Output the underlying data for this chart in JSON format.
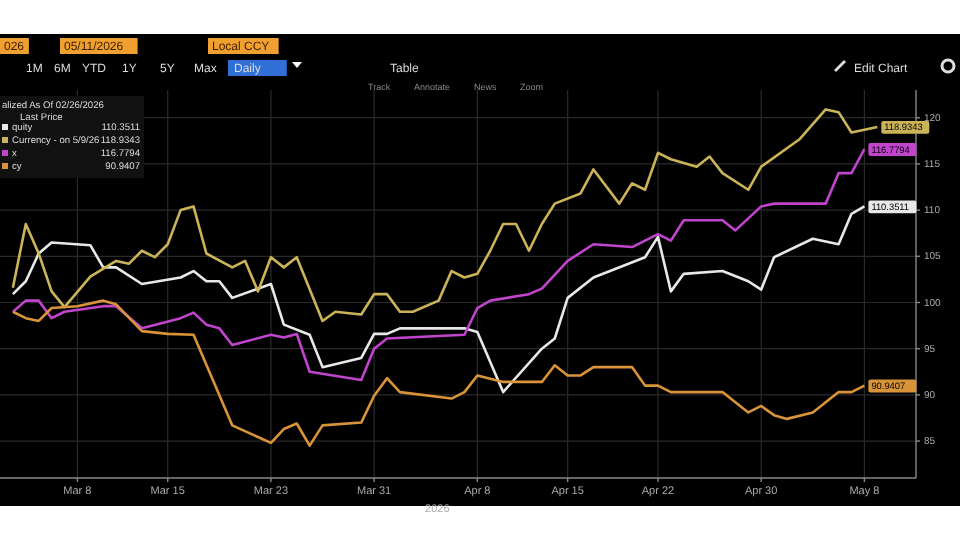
{
  "chart_data": {
    "type": "line",
    "legend_title": "alized As Of 02/26/2026\nLast Price",
    "xlabel": "2026",
    "xlim": [
      "2026-03-02",
      "2026-05-12"
    ],
    "xticks": [
      {
        "value": "2026-03-08",
        "label": "Mar 8"
      },
      {
        "value": "2026-03-15",
        "label": "Mar 15"
      },
      {
        "value": "2026-03-23",
        "label": "Mar 23"
      },
      {
        "value": "2026-03-31",
        "label": "Mar 31"
      },
      {
        "value": "2026-04-08",
        "label": "Apr 8"
      },
      {
        "value": "2026-04-15",
        "label": "Apr 15"
      },
      {
        "value": "2026-04-22",
        "label": "Apr 22"
      },
      {
        "value": "2026-04-30",
        "label": "Apr 30"
      },
      {
        "value": "2026-05-08",
        "label": "May 8"
      }
    ],
    "ylim": [
      81,
      123
    ],
    "yticks": [
      85,
      90,
      95,
      100,
      105,
      110,
      115,
      120
    ],
    "grid": true,
    "legend": "top left",
    "marker": "none",
    "line_style": "solid",
    "series": [
      {
        "name": "quity",
        "color": "#e8e8e8",
        "x": [
          "2026-03-03",
          "2026-03-04",
          "2026-03-05",
          "2026-03-06",
          "2026-03-09",
          "2026-03-10",
          "2026-03-11",
          "2026-03-13",
          "2026-03-16",
          "2026-03-17",
          "2026-03-18",
          "2026-03-19",
          "2026-03-20",
          "2026-03-23",
          "2026-03-24",
          "2026-03-26",
          "2026-03-27",
          "2026-03-30",
          "2026-03-31",
          "2026-04-01",
          "2026-04-02",
          "2026-04-07",
          "2026-04-08",
          "2026-04-10",
          "2026-04-13",
          "2026-04-14",
          "2026-04-15",
          "2026-04-17",
          "2026-04-21",
          "2026-04-22",
          "2026-04-23",
          "2026-04-24",
          "2026-04-27",
          "2026-04-29",
          "2026-04-30",
          "2026-05-01",
          "2026-05-04",
          "2026-05-06",
          "2026-05-07",
          "2026-05-08"
        ],
        "values": [
          100.9,
          102.3,
          105.3,
          106.5,
          106.2,
          103.8,
          103.8,
          102,
          102.7,
          103.4,
          102.3,
          102.3,
          100.5,
          102,
          97.6,
          96.5,
          93,
          94,
          96.6,
          96.6,
          97.2,
          97.2,
          96.8,
          90.3,
          95,
          96.1,
          100.5,
          102.7,
          104.9,
          107.1,
          101.2,
          103.1,
          103.4,
          102.3,
          101.4,
          104.9,
          106.9,
          106.3,
          109.6,
          110.4
        ]
      },
      {
        "name": "Currency -  on 5/9/26",
        "color": "#cbb457",
        "x": [
          "2026-03-03",
          "2026-03-04",
          "2026-03-05",
          "2026-03-06",
          "2026-03-07",
          "2026-03-09",
          "2026-03-11",
          "2026-03-12",
          "2026-03-13",
          "2026-03-14",
          "2026-03-15",
          "2026-03-16",
          "2026-03-17",
          "2026-03-18",
          "2026-03-20",
          "2026-03-21",
          "2026-03-22",
          "2026-03-23",
          "2026-03-24",
          "2026-03-25",
          "2026-03-27",
          "2026-03-28",
          "2026-03-30",
          "2026-03-31",
          "2026-04-01",
          "2026-04-02",
          "2026-04-03",
          "2026-04-05",
          "2026-04-06",
          "2026-04-07",
          "2026-04-08",
          "2026-04-09",
          "2026-04-10",
          "2026-04-11",
          "2026-04-12",
          "2026-04-13",
          "2026-04-14",
          "2026-04-16",
          "2026-04-17",
          "2026-04-19",
          "2026-04-20",
          "2026-04-21",
          "2026-04-22",
          "2026-04-23",
          "2026-04-25",
          "2026-04-26",
          "2026-04-27",
          "2026-04-29",
          "2026-04-30",
          "2026-05-03",
          "2026-05-05",
          "2026-05-06",
          "2026-05-07",
          "2026-05-08",
          "2026-05-09"
        ],
        "values": [
          101.6,
          108.5,
          105.3,
          101.2,
          99.5,
          102.8,
          104.5,
          104.2,
          105.6,
          104.9,
          106.3,
          110,
          110.4,
          105.3,
          103.8,
          104.5,
          101.2,
          104.9,
          103.8,
          104.9,
          98,
          99,
          98.7,
          100.9,
          100.9,
          99,
          99,
          100.2,
          103.4,
          102.7,
          103.1,
          105.6,
          108.5,
          108.5,
          105.6,
          108.5,
          110.7,
          111.8,
          114.4,
          110.7,
          112.9,
          112.2,
          116.2,
          115.5,
          114.7,
          115.8,
          114,
          112.2,
          114.7,
          117.7,
          120.9,
          120.6,
          118.4,
          118.7,
          119
        ]
      },
      {
        "name": "x",
        "color": "#c044cc",
        "x": [
          "2026-03-03",
          "2026-03-04",
          "2026-03-05",
          "2026-03-06",
          "2026-03-07",
          "2026-03-10",
          "2026-03-11",
          "2026-03-13",
          "2026-03-16",
          "2026-03-17",
          "2026-03-18",
          "2026-03-19",
          "2026-03-20",
          "2026-03-23",
          "2026-03-24",
          "2026-03-25",
          "2026-03-26",
          "2026-03-30",
          "2026-03-31",
          "2026-04-01",
          "2026-04-07",
          "2026-04-08",
          "2026-04-09",
          "2026-04-12",
          "2026-04-13",
          "2026-04-15",
          "2026-04-17",
          "2026-04-20",
          "2026-04-22",
          "2026-04-23",
          "2026-04-24",
          "2026-04-27",
          "2026-04-28",
          "2026-04-30",
          "2026-05-01",
          "2026-05-05",
          "2026-05-06",
          "2026-05-07",
          "2026-05-08"
        ],
        "values": [
          99,
          100.2,
          100.2,
          98.3,
          99,
          99.6,
          99.6,
          97.2,
          98.3,
          98.9,
          97.6,
          97.2,
          95.4,
          96.5,
          96.2,
          96.6,
          92.5,
          91.6,
          95,
          96.1,
          96.5,
          99.4,
          100.2,
          100.9,
          101.5,
          104.5,
          106.3,
          106,
          107.4,
          106.7,
          108.9,
          108.9,
          107.8,
          110.4,
          110.7,
          110.7,
          114,
          114,
          116.6
        ]
      },
      {
        "name": "cy",
        "color": "#d9943a",
        "x": [
          "2026-03-03",
          "2026-03-04",
          "2026-03-05",
          "2026-03-06",
          "2026-03-08",
          "2026-03-10",
          "2026-03-11",
          "2026-03-13",
          "2026-03-15",
          "2026-03-17",
          "2026-03-20",
          "2026-03-23",
          "2026-03-24",
          "2026-03-25",
          "2026-03-26",
          "2026-03-27",
          "2026-03-30",
          "2026-03-31",
          "2026-04-01",
          "2026-04-02",
          "2026-04-06",
          "2026-04-07",
          "2026-04-08",
          "2026-04-10",
          "2026-04-13",
          "2026-04-14",
          "2026-04-15",
          "2026-04-16",
          "2026-04-17",
          "2026-04-20",
          "2026-04-21",
          "2026-04-22",
          "2026-04-23",
          "2026-04-27",
          "2026-04-29",
          "2026-04-30",
          "2026-05-01",
          "2026-05-02",
          "2026-05-04",
          "2026-05-06",
          "2026-05-07",
          "2026-05-08"
        ],
        "values": [
          99,
          98.3,
          98,
          99.4,
          99.6,
          100.2,
          99.8,
          96.9,
          96.6,
          96.5,
          86.7,
          84.8,
          86.3,
          86.9,
          84.5,
          86.7,
          87,
          89.9,
          91.8,
          90.3,
          89.6,
          90.3,
          92.1,
          91.4,
          91.4,
          93.2,
          92.1,
          92.1,
          93,
          93,
          91,
          91,
          90.3,
          90.3,
          88.1,
          88.8,
          87.8,
          87.4,
          88.1,
          90.3,
          90.3,
          91
        ]
      }
    ],
    "annotations": [
      {
        "text": "110.3511",
        "x": "2026-05-08",
        "y": 110.4
      },
      {
        "text": "118.9343",
        "x": "2026-05-09",
        "y": 119
      },
      {
        "text": "116.7794",
        "x": "2026-05-08",
        "y": 116.6
      },
      {
        "text": "90.9407",
        "x": "2026-05-08",
        "y": 91
      },
      "026",
      "05/11/2026",
      "Local CCY",
      "1M",
      "6M",
      "YTD",
      "1Y",
      "5Y",
      "Max",
      "Daily",
      "Table",
      "Track",
      "Annotate",
      "News",
      "Zoom",
      "Edit Chart"
    ]
  }
}
